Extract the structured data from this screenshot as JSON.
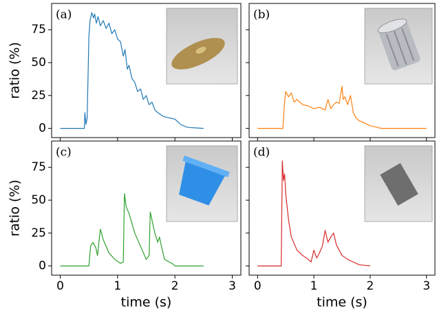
{
  "chart_data": [
    {
      "type": "line",
      "label": "(a)",
      "ylabel": "ratio (%)",
      "xlim": [
        -0.15,
        3.15
      ],
      "ylim": [
        -7,
        95
      ],
      "xticks": [
        0,
        1,
        2,
        3
      ],
      "yticks": [
        0,
        25,
        50,
        75
      ],
      "xtick_labels": false,
      "ytick_labels": true,
      "series": [
        {
          "color": "#1f77b4",
          "x": [
            0,
            0.4,
            0.42,
            0.43,
            0.45,
            0.47,
            0.5,
            0.52,
            0.55,
            0.58,
            0.6,
            0.63,
            0.66,
            0.7,
            0.75,
            0.8,
            0.85,
            0.9,
            0.95,
            1.0,
            1.05,
            1.1,
            1.13,
            1.17,
            1.2,
            1.25,
            1.3,
            1.35,
            1.4,
            1.45,
            1.5,
            1.55,
            1.6,
            1.65,
            1.7,
            1.8,
            1.9,
            2.0,
            2.05,
            2.1,
            2.2,
            2.3,
            2.5
          ],
          "values": [
            0,
            0,
            0,
            12,
            3,
            8,
            70,
            82,
            88,
            84,
            87,
            80,
            85,
            78,
            82,
            76,
            80,
            72,
            75,
            68,
            66,
            55,
            60,
            45,
            48,
            38,
            35,
            28,
            30,
            22,
            25,
            18,
            20,
            14,
            12,
            9,
            8,
            7,
            5,
            3,
            1,
            0.5,
            0
          ]
        }
      ]
    },
    {
      "type": "line",
      "label": "(b)",
      "xlim": [
        -0.15,
        3.15
      ],
      "ylim": [
        -7,
        95
      ],
      "xticks": [
        0,
        1,
        2,
        3
      ],
      "yticks": [
        0,
        25,
        50,
        75
      ],
      "xtick_labels": false,
      "ytick_labels": false,
      "series": [
        {
          "color": "#ff7f0e",
          "x": [
            0,
            0.45,
            0.48,
            0.5,
            0.55,
            0.6,
            0.65,
            0.7,
            0.8,
            0.9,
            1.0,
            1.1,
            1.2,
            1.25,
            1.3,
            1.35,
            1.4,
            1.45,
            1.5,
            1.52,
            1.55,
            1.6,
            1.65,
            1.7,
            1.75,
            1.8,
            1.9,
            2.0,
            2.1,
            2.2,
            2.5,
            3.0
          ],
          "values": [
            0,
            0,
            20,
            28,
            24,
            27,
            20,
            22,
            18,
            17,
            15,
            16,
            14,
            22,
            15,
            18,
            20,
            19,
            32,
            22,
            24,
            18,
            25,
            12,
            8,
            6,
            4,
            2,
            1,
            0,
            0,
            0
          ]
        }
      ]
    },
    {
      "type": "line",
      "label": "(c)",
      "xlabel": "time (s)",
      "ylabel": "ratio (%)",
      "xlim": [
        -0.15,
        3.15
      ],
      "ylim": [
        -7,
        95
      ],
      "xticks": [
        0,
        1,
        2,
        3
      ],
      "yticks": [
        0,
        25,
        50,
        75
      ],
      "xtick_labels": true,
      "ytick_labels": true,
      "series": [
        {
          "color": "#2ca02c",
          "x": [
            0,
            0.5,
            0.53,
            0.57,
            0.62,
            0.65,
            0.7,
            0.75,
            0.85,
            0.95,
            1.05,
            1.1,
            1.12,
            1.15,
            1.2,
            1.3,
            1.4,
            1.5,
            1.55,
            1.57,
            1.6,
            1.65,
            1.7,
            1.73,
            1.78,
            1.82,
            1.9,
            1.95,
            2.0,
            2.5
          ],
          "values": [
            0,
            0,
            15,
            18,
            14,
            8,
            28,
            20,
            10,
            5,
            2,
            3,
            55,
            45,
            40,
            25,
            15,
            5,
            8,
            41,
            35,
            25,
            18,
            22,
            12,
            5,
            3,
            2,
            0,
            0
          ]
        }
      ]
    },
    {
      "type": "line",
      "label": "(d)",
      "xlabel": "time (s)",
      "xlim": [
        -0.15,
        3.15
      ],
      "ylim": [
        -7,
        95
      ],
      "xticks": [
        0,
        1,
        2,
        3
      ],
      "yticks": [
        0,
        25,
        50,
        75
      ],
      "xtick_labels": true,
      "ytick_labels": false,
      "series": [
        {
          "color": "#d62728",
          "x": [
            0,
            0.42,
            0.44,
            0.46,
            0.48,
            0.5,
            0.55,
            0.6,
            0.7,
            0.8,
            0.9,
            0.95,
            1.0,
            1.05,
            1.1,
            1.15,
            1.2,
            1.25,
            1.3,
            1.35,
            1.4,
            1.45,
            1.5,
            1.6,
            1.7,
            1.8,
            1.9,
            2.0
          ],
          "values": [
            0,
            0,
            80,
            65,
            70,
            55,
            35,
            22,
            12,
            8,
            5,
            3,
            12,
            6,
            10,
            15,
            27,
            18,
            22,
            25,
            16,
            12,
            8,
            5,
            3,
            1,
            0.5,
            0
          ]
        }
      ]
    }
  ]
}
